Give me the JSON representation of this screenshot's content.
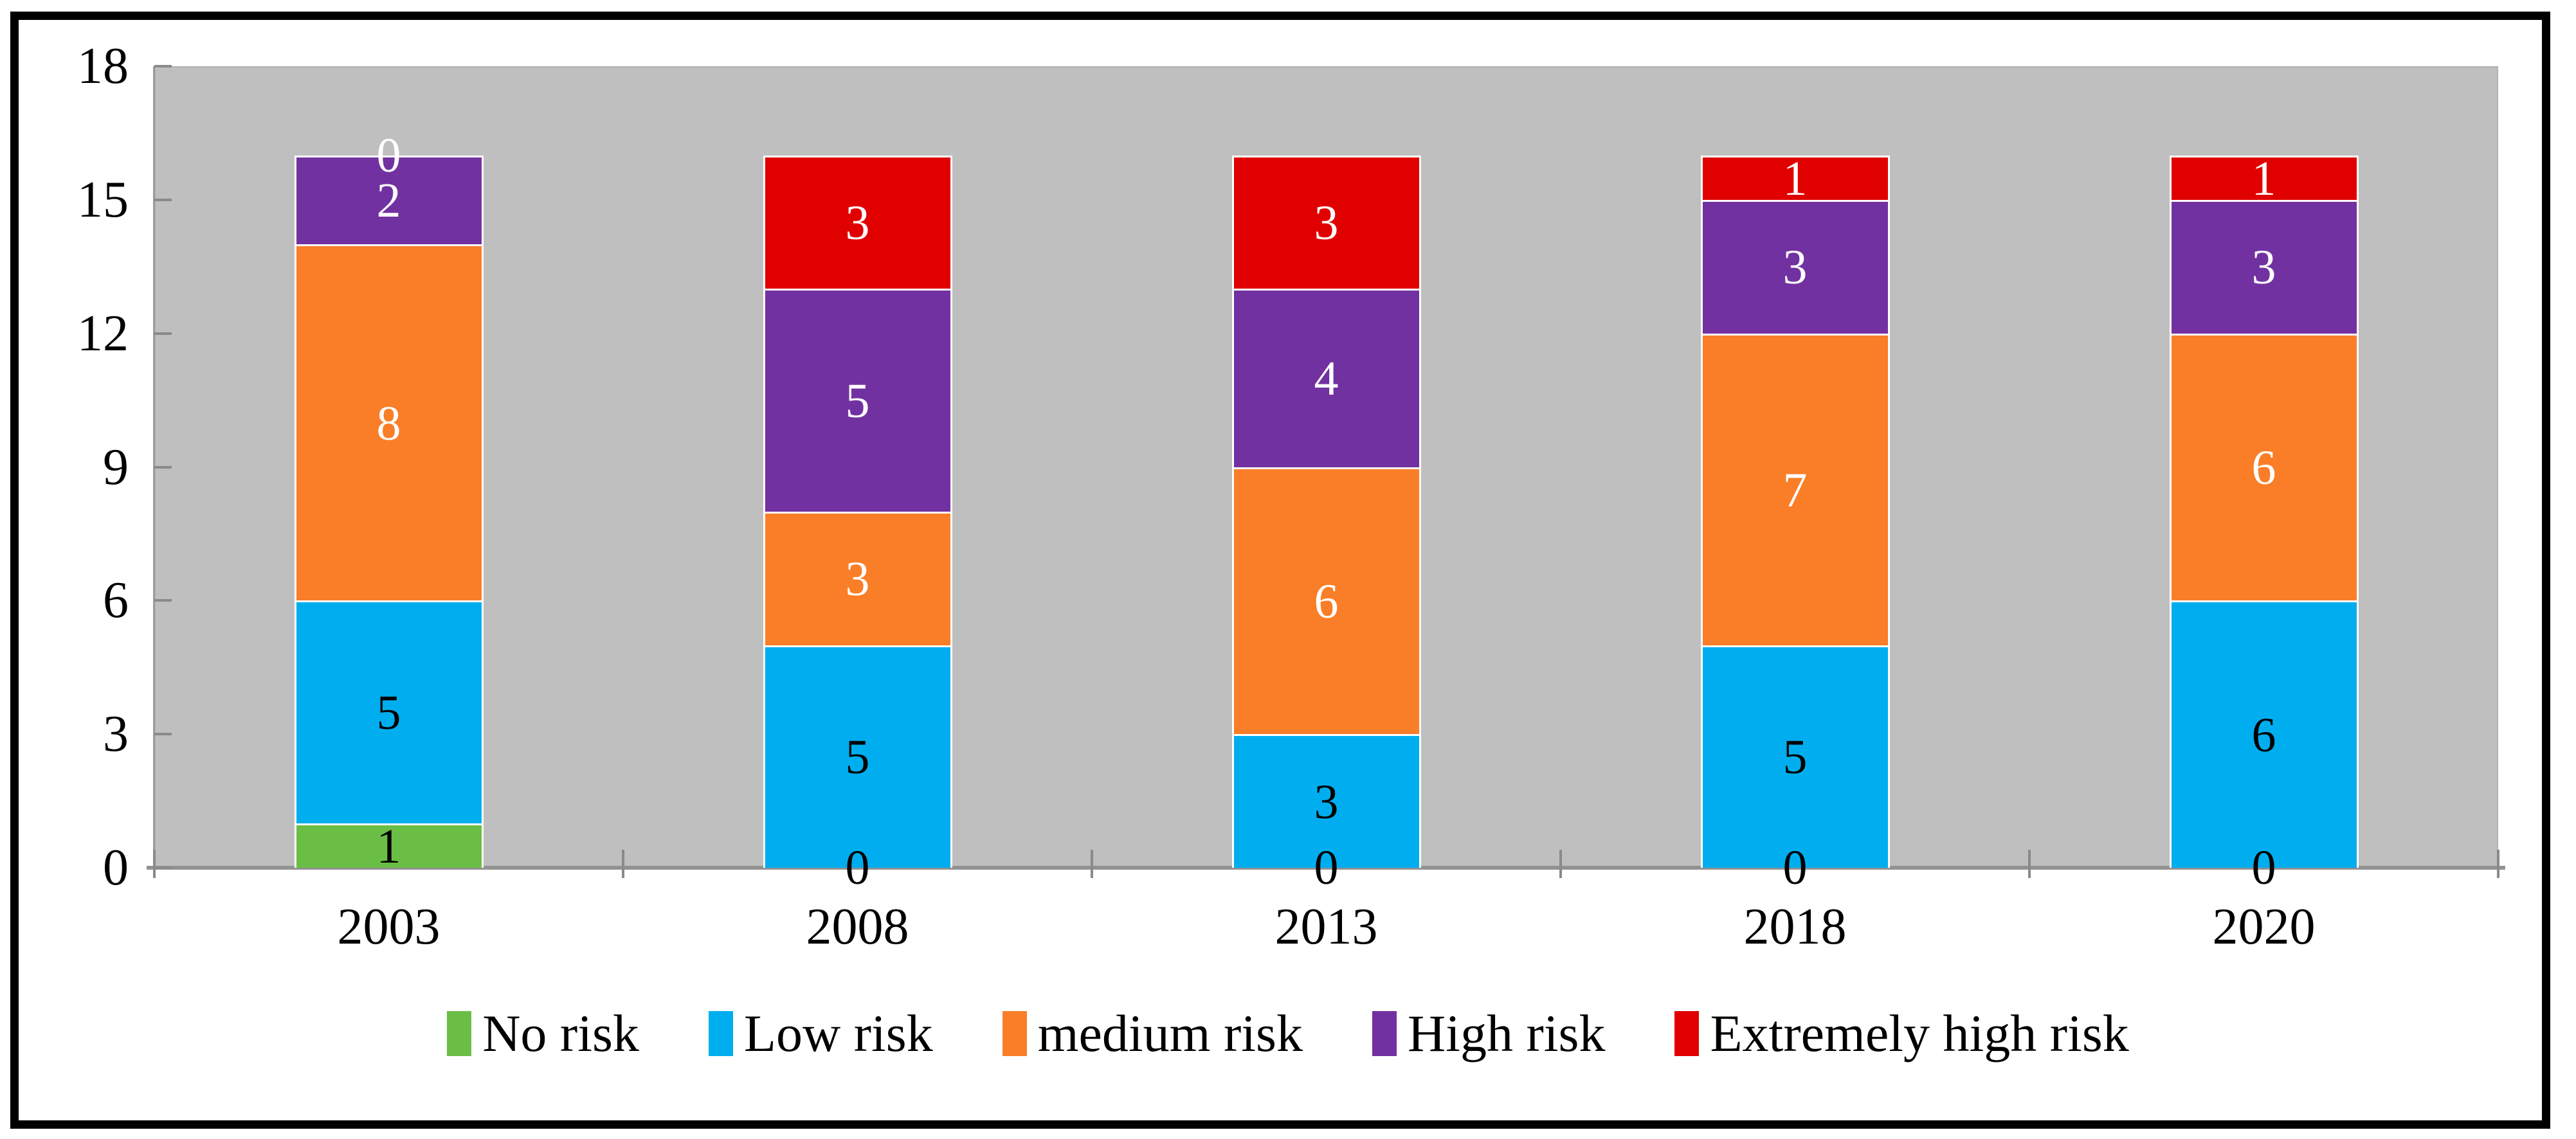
{
  "figure": {
    "background": "#ffffff",
    "border_color": "#000000",
    "plot_background": "#BFBFBF",
    "axis_line_color": "#929292",
    "tick_color": "#8a8a8a",
    "text_color": "#000000"
  },
  "chart_data": {
    "type": "bar",
    "stacked": true,
    "title": "",
    "xlabel": "",
    "ylabel": "",
    "grid": false,
    "legend_position": "bottom",
    "data_labels": true,
    "categories": [
      "2003",
      "2008",
      "2013",
      "2018",
      "2020"
    ],
    "series": [
      {
        "name": "No risk",
        "color": "#6BBE45",
        "label_color": "#000000",
        "values": [
          1,
          0,
          0,
          0,
          0
        ]
      },
      {
        "name": "Low risk",
        "color": "#00AEEF",
        "label_color": "#000000",
        "values": [
          5,
          5,
          3,
          5,
          6
        ]
      },
      {
        "name": "medium risk",
        "color": "#F97E27",
        "label_color": "#ffffff",
        "values": [
          8,
          3,
          6,
          7,
          6
        ]
      },
      {
        "name": "High risk",
        "color": "#7231A0",
        "label_color": "#ffffff",
        "values": [
          2,
          5,
          4,
          3,
          3
        ]
      },
      {
        "name": "Extremely high risk",
        "color": "#E00000",
        "label_color": "#ffffff",
        "values": [
          0,
          3,
          3,
          1,
          1
        ]
      }
    ],
    "ylim": [
      0,
      18
    ],
    "yticks": [
      0,
      3,
      6,
      9,
      12,
      15,
      18
    ]
  }
}
